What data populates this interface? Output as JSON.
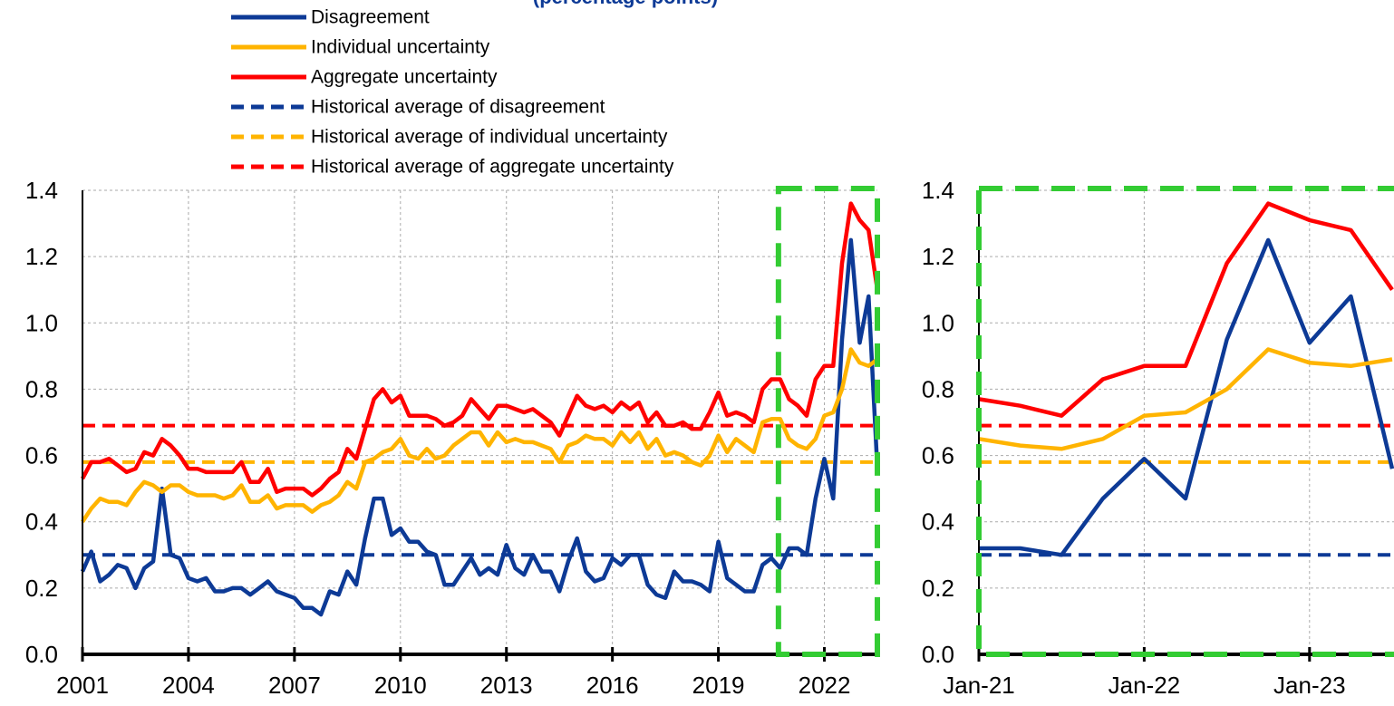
{
  "chart_data": [
    {
      "type": "line",
      "subtitle": "(percentage points)",
      "x": [
        2001,
        2001.25,
        2001.5,
        2001.75,
        2002,
        2002.25,
        2002.5,
        2002.75,
        2003,
        2003.25,
        2003.5,
        2003.75,
        2004,
        2004.25,
        2004.5,
        2004.75,
        2005,
        2005.25,
        2005.5,
        2005.75,
        2006,
        2006.25,
        2006.5,
        2006.75,
        2007,
        2007.25,
        2007.5,
        2007.75,
        2008,
        2008.25,
        2008.5,
        2008.75,
        2009,
        2009.25,
        2009.5,
        2009.75,
        2010,
        2010.25,
        2010.5,
        2010.75,
        2011,
        2011.25,
        2011.5,
        2011.75,
        2012,
        2012.25,
        2012.5,
        2012.75,
        2013,
        2013.25,
        2013.5,
        2013.75,
        2014,
        2014.25,
        2014.5,
        2014.75,
        2015,
        2015.25,
        2015.5,
        2015.75,
        2016,
        2016.25,
        2016.5,
        2016.75,
        2017,
        2017.25,
        2017.5,
        2017.75,
        2018,
        2018.25,
        2018.5,
        2018.75,
        2019,
        2019.25,
        2019.5,
        2019.75,
        2020,
        2020.25,
        2020.5,
        2020.75,
        2021,
        2021.25,
        2021.5,
        2021.75,
        2022,
        2022.25,
        2022.5,
        2022.75,
        2023,
        2023.25,
        2023.5
      ],
      "series": [
        {
          "name": "Disagreement",
          "color": "#0d3a96",
          "values": [
            0.25,
            0.31,
            0.22,
            0.24,
            0.27,
            0.26,
            0.2,
            0.26,
            0.28,
            0.5,
            0.3,
            0.29,
            0.23,
            0.22,
            0.23,
            0.19,
            0.19,
            0.2,
            0.2,
            0.18,
            0.2,
            0.22,
            0.19,
            0.18,
            0.17,
            0.14,
            0.14,
            0.12,
            0.19,
            0.18,
            0.25,
            0.21,
            0.35,
            0.47,
            0.47,
            0.36,
            0.38,
            0.34,
            0.34,
            0.31,
            0.3,
            0.21,
            0.21,
            0.25,
            0.29,
            0.24,
            0.26,
            0.24,
            0.33,
            0.26,
            0.24,
            0.3,
            0.25,
            0.25,
            0.19,
            0.28,
            0.35,
            0.25,
            0.22,
            0.23,
            0.29,
            0.27,
            0.3,
            0.3,
            0.21,
            0.18,
            0.17,
            0.25,
            0.22,
            0.22,
            0.21,
            0.19,
            0.34,
            0.23,
            0.21,
            0.19,
            0.19,
            0.27,
            0.29,
            0.26,
            0.32,
            0.32,
            0.3,
            0.47,
            0.59,
            0.47,
            0.95,
            1.25,
            0.94,
            1.08,
            0.56
          ]
        },
        {
          "name": "Individual uncertainty",
          "color": "#ffb400",
          "values": [
            0.4,
            0.44,
            0.47,
            0.46,
            0.46,
            0.45,
            0.49,
            0.52,
            0.51,
            0.49,
            0.51,
            0.51,
            0.49,
            0.48,
            0.48,
            0.48,
            0.47,
            0.48,
            0.51,
            0.46,
            0.46,
            0.48,
            0.44,
            0.45,
            0.45,
            0.45,
            0.43,
            0.45,
            0.46,
            0.48,
            0.52,
            0.5,
            0.58,
            0.59,
            0.61,
            0.62,
            0.65,
            0.6,
            0.59,
            0.62,
            0.59,
            0.6,
            0.63,
            0.65,
            0.67,
            0.67,
            0.63,
            0.67,
            0.64,
            0.65,
            0.64,
            0.64,
            0.63,
            0.62,
            0.58,
            0.63,
            0.64,
            0.66,
            0.65,
            0.65,
            0.63,
            0.67,
            0.64,
            0.67,
            0.62,
            0.65,
            0.6,
            0.61,
            0.6,
            0.58,
            0.57,
            0.6,
            0.66,
            0.61,
            0.65,
            0.63,
            0.61,
            0.7,
            0.71,
            0.71,
            0.65,
            0.63,
            0.62,
            0.65,
            0.72,
            0.73,
            0.8,
            0.92,
            0.88,
            0.87,
            0.89
          ]
        },
        {
          "name": "Aggregate uncertainty",
          "color": "#ff0000",
          "values": [
            0.53,
            0.58,
            0.58,
            0.59,
            0.57,
            0.55,
            0.56,
            0.61,
            0.6,
            0.65,
            0.63,
            0.6,
            0.56,
            0.56,
            0.55,
            0.55,
            0.55,
            0.55,
            0.58,
            0.52,
            0.52,
            0.56,
            0.49,
            0.5,
            0.5,
            0.5,
            0.48,
            0.5,
            0.53,
            0.55,
            0.62,
            0.59,
            0.68,
            0.77,
            0.8,
            0.76,
            0.78,
            0.72,
            0.72,
            0.72,
            0.71,
            0.69,
            0.7,
            0.72,
            0.77,
            0.74,
            0.71,
            0.75,
            0.75,
            0.74,
            0.73,
            0.74,
            0.72,
            0.7,
            0.66,
            0.72,
            0.78,
            0.75,
            0.74,
            0.75,
            0.73,
            0.76,
            0.74,
            0.76,
            0.7,
            0.73,
            0.69,
            0.69,
            0.7,
            0.68,
            0.68,
            0.73,
            0.79,
            0.72,
            0.73,
            0.72,
            0.7,
            0.8,
            0.83,
            0.83,
            0.77,
            0.75,
            0.72,
            0.83,
            0.87,
            0.87,
            1.18,
            1.36,
            1.31,
            1.28,
            1.1
          ]
        }
      ],
      "reference_lines": [
        {
          "name": "Historical average of disagreement",
          "color": "#0d3a96",
          "value": 0.3
        },
        {
          "name": "Historical average of individual uncertainty",
          "color": "#ffb400",
          "value": 0.58
        },
        {
          "name": "Historical average of aggregate uncertainty",
          "color": "#ff0000",
          "value": 0.69
        }
      ],
      "highlight_range": [
        2020.7,
        2023.5
      ],
      "highlight_color": "#33cc33",
      "xlim": [
        2001,
        2023.5
      ],
      "xticks": [
        2001,
        2004,
        2007,
        2010,
        2013,
        2016,
        2019,
        2022
      ],
      "ylim": [
        0,
        1.4
      ],
      "yticks": [
        {
          "value": 0,
          "label": "0.0"
        },
        0.2,
        0.4,
        0.6,
        0.8,
        {
          "value": 1,
          "label": "1.0"
        },
        1.2,
        1.4
      ],
      "grid": true,
      "legend": "top-left"
    },
    {
      "type": "line",
      "x": [
        2021,
        2021.25,
        2021.5,
        2021.75,
        2022,
        2022.25,
        2022.5,
        2022.75,
        2023,
        2023.25,
        2023.5
      ],
      "series": [
        {
          "name": "Disagreement",
          "color": "#0d3a96",
          "values": [
            0.32,
            0.32,
            0.3,
            0.47,
            0.59,
            0.47,
            0.95,
            1.25,
            0.94,
            1.08,
            0.56
          ]
        },
        {
          "name": "Individual uncertainty",
          "color": "#ffb400",
          "values": [
            0.65,
            0.63,
            0.62,
            0.65,
            0.72,
            0.73,
            0.8,
            0.92,
            0.88,
            0.87,
            0.89
          ]
        },
        {
          "name": "Aggregate uncertainty",
          "color": "#ff0000",
          "values": [
            0.77,
            0.75,
            0.72,
            0.83,
            0.87,
            0.87,
            1.18,
            1.36,
            1.31,
            1.28,
            1.1
          ]
        }
      ],
      "reference_lines": [
        {
          "name": "Historical average of disagreement",
          "color": "#0d3a96",
          "value": 0.3
        },
        {
          "name": "Historical average of individual uncertainty",
          "color": "#ffb400",
          "value": 0.58
        },
        {
          "name": "Historical average of aggregate uncertainty",
          "color": "#ff0000",
          "value": 0.69
        }
      ],
      "highlight_range": [
        2021,
        2023.5
      ],
      "highlight_color": "#33cc33",
      "xlim": [
        2021,
        2023.5
      ],
      "xticks": [
        {
          "value": 2021,
          "label": "Jan-21"
        },
        {
          "value": 2022,
          "label": "Jan-22"
        },
        {
          "value": 2023,
          "label": "Jan-23"
        }
      ],
      "ylim": [
        0,
        1.4
      ],
      "yticks": [
        {
          "value": 0,
          "label": "0.0"
        },
        0.2,
        0.4,
        0.6,
        0.8,
        {
          "value": 1,
          "label": "1.0"
        },
        1.2,
        1.4
      ],
      "grid": true
    }
  ]
}
